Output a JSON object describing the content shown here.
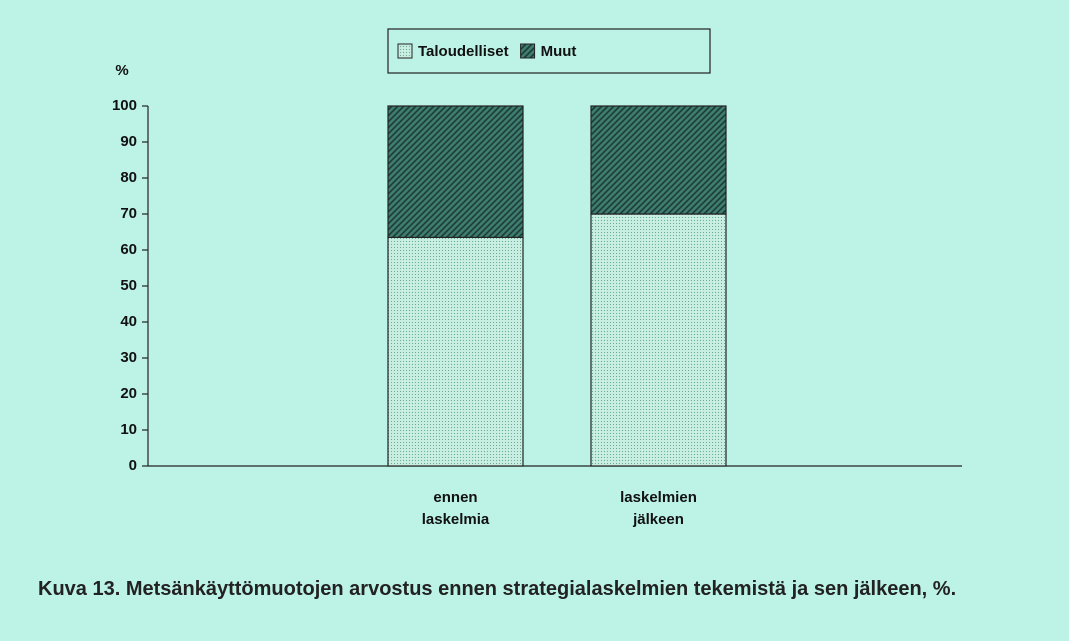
{
  "chart_data": {
    "type": "bar",
    "stacked": true,
    "title": "Kuva 13. Metsänkäyttömuotojen arvostus ennen strategialaskelmien tekemistä ja sen jälkeen, %.",
    "y_label": "%",
    "categories": [
      "ennen laskelmia",
      "laskelmien jälkeen"
    ],
    "series": [
      {
        "name": "Taloudelliset",
        "color": "#c8eee2",
        "values": [
          63.5,
          70
        ]
      },
      {
        "name": "Muut",
        "color": "#3f7d70",
        "values": [
          36.5,
          30
        ]
      }
    ],
    "ylim": [
      0,
      100
    ],
    "yticks": [
      0,
      10,
      20,
      30,
      40,
      50,
      60,
      70,
      80,
      90,
      100
    ]
  }
}
